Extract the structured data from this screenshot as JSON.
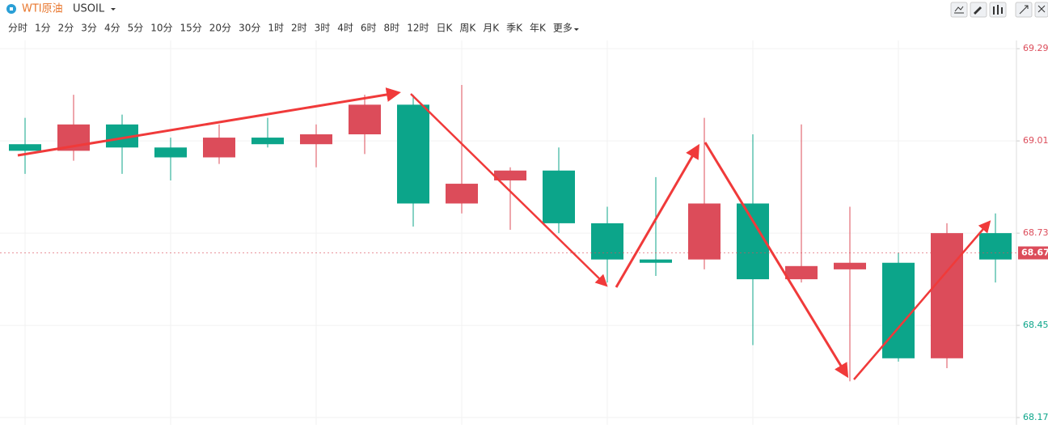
{
  "toolbar": {
    "name": "WTI原油",
    "symbol": "USOIL",
    "periods": [
      "分时",
      "1分",
      "2分",
      "3分",
      "4分",
      "5分",
      "10分",
      "15分",
      "20分",
      "30分",
      "1时",
      "2时",
      "3时",
      "4时",
      "6时",
      "8时",
      "12时",
      "日K",
      "周K",
      "月K",
      "季K",
      "年K",
      "更多"
    ],
    "active_index": 10
  },
  "chart_data": {
    "type": "candlestick",
    "open": [
      69.0,
      68.98,
      69.06,
      68.99,
      68.96,
      69.02,
      69.0,
      69.03,
      69.12,
      68.82,
      68.89,
      68.92,
      68.76,
      68.65,
      68.65,
      68.82,
      68.59,
      68.62,
      68.64,
      68.35,
      68.73
    ],
    "high": [
      69.08,
      69.15,
      69.09,
      69.02,
      69.06,
      69.08,
      69.06,
      69.15,
      69.15,
      69.18,
      68.93,
      68.99,
      68.81,
      68.9,
      69.08,
      69.03,
      69.06,
      68.81,
      68.67,
      68.76,
      68.79
    ],
    "low": [
      68.91,
      68.95,
      68.91,
      68.89,
      68.94,
      68.99,
      68.93,
      68.97,
      68.75,
      68.79,
      68.74,
      68.73,
      68.58,
      68.6,
      68.62,
      68.39,
      68.58,
      68.28,
      68.34,
      68.32,
      68.58
    ],
    "close": [
      68.98,
      69.06,
      68.99,
      68.96,
      69.02,
      69.0,
      69.03,
      69.12,
      68.82,
      68.88,
      68.92,
      68.76,
      68.65,
      68.64,
      68.82,
      68.59,
      68.63,
      68.64,
      68.35,
      68.73,
      68.65
    ],
    "up_color": "#dc4c5a",
    "down_color": "#0ca58a",
    "ylim": [
      68.148,
      69.315
    ],
    "yticks": [
      69.29,
      69.01,
      68.73,
      68.45,
      68.17
    ],
    "last_price": 68.67,
    "grid": true
  }
}
